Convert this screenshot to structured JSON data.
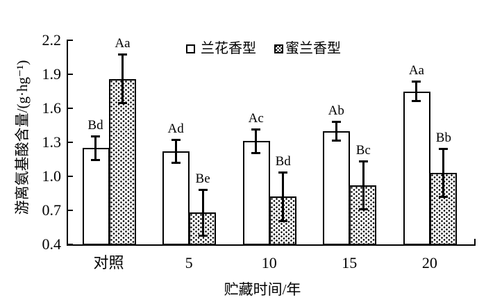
{
  "chart_data": {
    "type": "bar",
    "title": "",
    "xlabel": "贮藏时间/年",
    "ylabel": "游离氨基酸含量/(g·hg⁻¹)",
    "categories": [
      "对照",
      "5",
      "10",
      "15",
      "20"
    ],
    "series": [
      {
        "name": "兰花香型",
        "style": "plain",
        "values": [
          1.25,
          1.22,
          1.31,
          1.4,
          1.75
        ],
        "errors": [
          0.1,
          0.1,
          0.1,
          0.08,
          0.08
        ],
        "sig_labels": [
          "Bd",
          "Ad",
          "Ac",
          "Ab",
          "Aa"
        ]
      },
      {
        "name": "蜜兰香型",
        "style": "dotted",
        "values": [
          1.86,
          0.68,
          0.82,
          0.92,
          1.03
        ],
        "errors": [
          0.21,
          0.2,
          0.21,
          0.21,
          0.21
        ],
        "sig_labels": [
          "Aa",
          "Be",
          "Bd",
          "Bc",
          "Bb"
        ]
      }
    ],
    "ylim": [
      0.4,
      2.2
    ],
    "yticks": [
      "0.4",
      "0.7",
      "1.0",
      "1.3",
      "1.6",
      "1.9",
      "2.2"
    ],
    "grid": false,
    "legend_position": "top-center",
    "error_bars": true
  },
  "colors": {
    "foreground": "#000000",
    "background": "#ffffff"
  }
}
